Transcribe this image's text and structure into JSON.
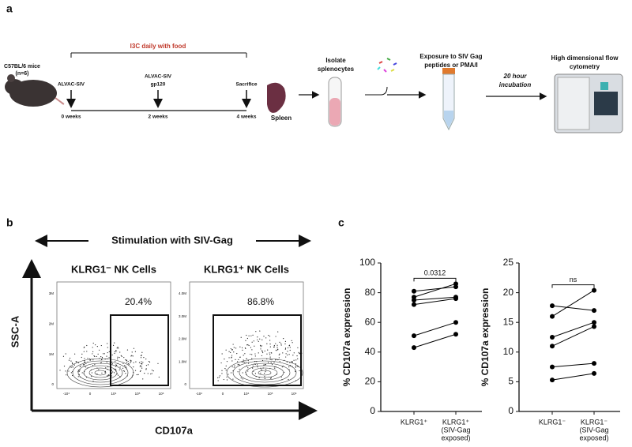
{
  "panel_a": {
    "label": "a",
    "mouse": [
      "C57BL/6 mice",
      "(n=6)"
    ],
    "treatment": "I3C daily with food",
    "timepoints": [
      {
        "event": [
          "ALVAC-SIV"
        ],
        "time": "0 weeks"
      },
      {
        "event": [
          "ALVAC-SIV",
          "gp120"
        ],
        "time": "2 weeks"
      },
      {
        "event": [
          "Sacrifice"
        ],
        "time": "4 weeks"
      }
    ],
    "spleen": "Spleen",
    "steps": [
      [
        "Isolate",
        "splenocytes"
      ],
      [
        "Exposure to SIV Gag",
        "peptides or PMA/I"
      ],
      [
        "20 hour",
        "incubation"
      ],
      [
        "High dimensional flow",
        "cytometry"
      ]
    ]
  },
  "panel_b": {
    "label": "b",
    "title": "Stimulation with SIV-Gag",
    "ylabel": "SSC-A",
    "xlabel": "CD107a",
    "plots": [
      {
        "title": "KLRG1⁻ NK Cells",
        "gate": "20.4%",
        "yticks": [
          "3M",
          "2M",
          "1M",
          "0"
        ],
        "xticks": [
          "-10⁴",
          "0",
          "10⁴",
          "10⁵",
          "10⁶"
        ]
      },
      {
        "title": "KLRG1⁺ NK Cells",
        "gate": "86.8%",
        "yticks": [
          "4.0M",
          "3.0M",
          "2.0M",
          "1.0M",
          "0"
        ],
        "xticks": [
          "-10⁴",
          "0",
          "10⁴",
          "10⁵",
          "10⁶"
        ]
      }
    ]
  },
  "panel_c": {
    "label": "c"
  },
  "chart_data": [
    {
      "type": "paired_dot",
      "ylabel": "% CD107a expression",
      "categories": [
        [
          "KLRG1⁺"
        ],
        [
          "KLRG1⁺",
          "(SIV-Gag",
          "exposed)"
        ]
      ],
      "series": [
        {
          "values": [
            81,
            84
          ]
        },
        {
          "values": [
            77,
            86
          ]
        },
        {
          "values": [
            75,
            77
          ]
        },
        {
          "values": [
            72,
            76
          ]
        },
        {
          "values": [
            51,
            60
          ]
        },
        {
          "values": [
            43,
            52
          ]
        }
      ],
      "ylim": [
        0,
        100
      ],
      "yticks": [
        0,
        20,
        40,
        60,
        80,
        100
      ],
      "annotation": "0.0312",
      "color": "#000000"
    },
    {
      "type": "paired_dot",
      "ylabel": "% CD107a expression",
      "categories": [
        [
          "KLRG1⁻"
        ],
        [
          "KLRG1⁻",
          "(SIV-Gag",
          "exposed)"
        ]
      ],
      "series": [
        {
          "values": [
            17.8,
            17
          ]
        },
        {
          "values": [
            16,
            20.4
          ]
        },
        {
          "values": [
            12.5,
            15
          ]
        },
        {
          "values": [
            11,
            14.3
          ]
        },
        {
          "values": [
            7.5,
            8.1
          ]
        },
        {
          "values": [
            5.3,
            6.4
          ]
        }
      ],
      "ylim": [
        0,
        25
      ],
      "yticks": [
        0,
        5,
        10,
        15,
        20,
        25
      ],
      "annotation": "ns",
      "color": "#000000"
    }
  ]
}
